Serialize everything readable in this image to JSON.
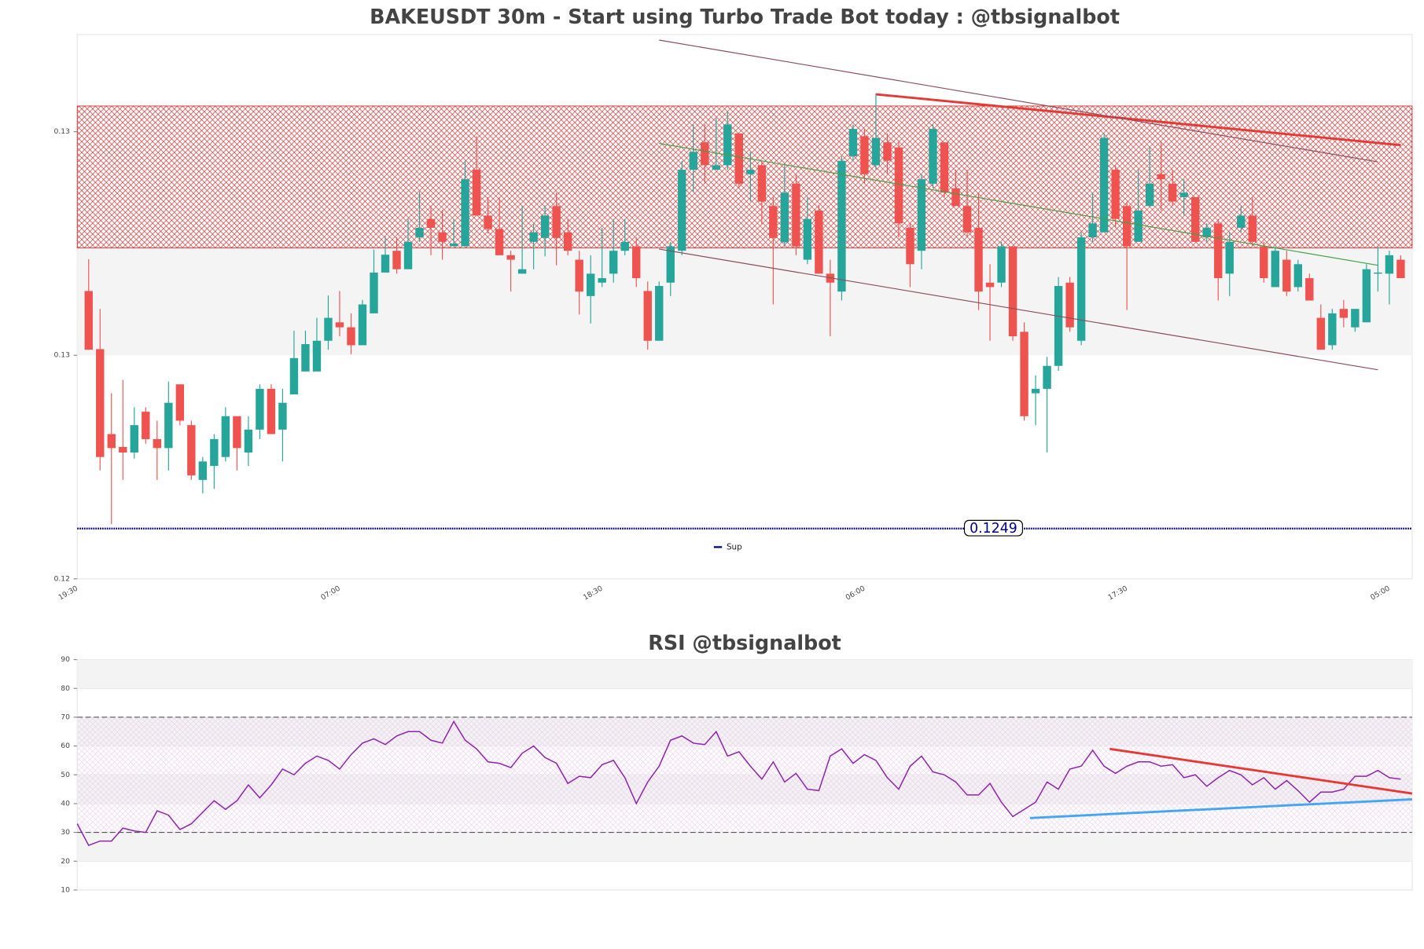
{
  "chart_data": [
    {
      "type": "candlestick",
      "title": "BAKEUSDT 30m - Start using Turbo Trade Bot today : @tbsignalbot",
      "categories": [
        "19:30",
        null,
        null,
        null,
        null,
        null,
        null,
        null,
        null,
        null,
        null,
        null,
        null,
        null,
        null,
        null,
        null,
        null,
        null,
        null,
        null,
        null,
        null,
        "07:00",
        null,
        null,
        null,
        null,
        null,
        null,
        null,
        null,
        null,
        null,
        null,
        null,
        null,
        null,
        null,
        null,
        null,
        null,
        null,
        null,
        null,
        null,
        "18:30",
        null,
        null,
        null,
        null,
        null,
        null,
        null,
        null,
        null,
        null,
        null,
        null,
        null,
        null,
        null,
        null,
        null,
        null,
        null,
        null,
        null,
        null,
        "06:00",
        null,
        null,
        null,
        null,
        null,
        null,
        null,
        null,
        null,
        null,
        null,
        null,
        null,
        null,
        null,
        null,
        null,
        null,
        null,
        null,
        null,
        null,
        "17:30",
        null,
        null,
        null,
        null,
        null,
        null,
        null,
        null,
        null,
        null,
        null,
        null,
        null,
        null,
        null,
        null,
        null,
        null,
        null,
        null,
        null,
        null,
        "05:00",
        null
      ],
      "open": [
        null,
        0.12915,
        0.12811,
        0.12659,
        0.12636,
        0.12626,
        0.12699,
        0.1265,
        0.12634,
        0.12748,
        0.12675,
        0.12577,
        0.12602,
        0.12618,
        0.12691,
        0.12626,
        0.12667,
        0.1274,
        0.12667,
        0.1273,
        0.12771,
        0.12771,
        0.12826,
        0.12859,
        0.1285,
        0.12818,
        0.12875,
        0.12948,
        0.12987,
        0.12954,
        0.13011,
        0.13044,
        0.1302,
        0.12995,
        0.12995,
        0.13132,
        0.1305,
        0.13026,
        0.12979,
        0.12946,
        0.13003,
        0.1301,
        0.13067,
        0.1302,
        0.12971,
        0.12906,
        0.1293,
        0.12946,
        0.12987,
        0.12995,
        0.12915,
        0.12826,
        0.1293,
        0.12987,
        0.13132,
        0.13181,
        0.13132,
        0.1314,
        0.13197,
        0.13124,
        0.1314,
        0.13067,
        0.13002,
        0.13107,
        0.12971,
        0.13059,
        0.12946,
        0.12914,
        0.13156,
        0.13192,
        0.1314,
        0.13181,
        0.13172,
        0.13028,
        0.12987,
        0.13107,
        0.13181,
        0.13099,
        0.13067,
        0.13028,
        0.1293,
        0.1293,
        0.12995,
        0.12842,
        0.12732,
        0.1274,
        0.12781,
        0.1293,
        0.12826,
        0.13011,
        0.1302,
        0.13132,
        0.13067,
        0.13003,
        0.13067,
        0.13124,
        0.13107,
        0.13083,
        0.13083,
        0.13011,
        0.13036,
        0.12946,
        0.13028,
        0.1305,
        0.12995,
        0.12922,
        0.12971,
        0.12922,
        0.12938,
        0.12867,
        0.12818,
        0.12883,
        0.1285,
        0.12859,
        0.12946,
        0.12946,
        0.12971
      ],
      "high": [
        null,
        0.12972,
        0.12883,
        0.12732,
        0.12756,
        0.12707,
        0.12707,
        0.12683,
        0.12753,
        0.12748,
        0.12683,
        0.12618,
        0.12659,
        0.12707,
        0.12691,
        0.12691,
        0.12748,
        0.12748,
        0.1274,
        0.12844,
        0.12844,
        0.12867,
        0.12907,
        0.12915,
        0.12875,
        0.12899,
        0.12989,
        0.13013,
        0.13011,
        0.13044,
        0.13093,
        0.13068,
        0.1306,
        0.13044,
        0.13148,
        0.13192,
        0.13083,
        0.13083,
        0.12987,
        0.13068,
        0.13036,
        0.13068,
        0.13091,
        0.13044,
        0.12987,
        0.12979,
        0.13028,
        0.13044,
        0.13044,
        0.13011,
        0.12932,
        0.12932,
        0.13003,
        0.13148,
        0.13213,
        0.13213,
        0.13224,
        0.13237,
        0.13197,
        0.13164,
        0.13148,
        0.13083,
        0.1314,
        0.13124,
        0.13083,
        0.13068,
        0.12971,
        0.13156,
        0.13213,
        0.13205,
        0.13268,
        0.13197,
        0.13181,
        0.13036,
        0.13124,
        0.13213,
        0.13181,
        0.13132,
        0.13132,
        0.13091,
        0.12963,
        0.13003,
        0.12995,
        0.12859,
        0.12764,
        0.12797,
        0.1294,
        0.1294,
        0.1302,
        0.13091,
        0.13197,
        0.1314,
        0.13075,
        0.13132,
        0.13172,
        0.13181,
        0.13132,
        0.13115,
        0.13083,
        0.13036,
        0.13044,
        0.1302,
        0.13067,
        0.13083,
        0.13003,
        0.12995,
        0.12987,
        0.12971,
        0.12946,
        0.12891,
        0.12883,
        0.12899,
        0.12883,
        0.12963,
        0.12995,
        0.12987,
        0.12979
      ],
      "low": [
        null,
        0.1281,
        0.12594,
        0.12498,
        0.12577,
        0.12615,
        0.12642,
        0.12577,
        0.12594,
        0.12675,
        0.12577,
        0.12553,
        0.12561,
        0.1261,
        0.12594,
        0.12602,
        0.1265,
        0.12659,
        0.1261,
        0.1273,
        0.12771,
        0.12771,
        0.1281,
        0.12834,
        0.12802,
        0.12818,
        0.12875,
        0.12948,
        0.12946,
        0.12954,
        0.13003,
        0.12979,
        0.12971,
        0.12995,
        0.12995,
        0.1305,
        0.13018,
        0.12979,
        0.12914,
        0.12946,
        0.12954,
        0.12977,
        0.12961,
        0.12979,
        0.12873,
        0.12857,
        0.12922,
        0.1293,
        0.12979,
        0.12922,
        0.1281,
        0.12826,
        0.12906,
        0.12979,
        0.13091,
        0.13107,
        0.13132,
        0.13132,
        0.13099,
        0.13075,
        0.13034,
        0.12891,
        0.12994,
        0.12979,
        0.12963,
        0.12946,
        0.12834,
        0.12898,
        0.13148,
        0.13107,
        0.13132,
        0.13124,
        0.13011,
        0.12922,
        0.12954,
        0.13099,
        0.13083,
        0.13067,
        0.13011,
        0.12881,
        0.12826,
        0.12922,
        0.12826,
        0.12683,
        0.12675,
        0.12626,
        0.12772,
        0.12842,
        0.12818,
        0.13003,
        0.1302,
        0.13028,
        0.12881,
        0.13003,
        0.13067,
        0.13059,
        0.13067,
        0.1305,
        0.13003,
        0.13003,
        0.12898,
        0.12906,
        0.1302,
        0.12995,
        0.1293,
        0.12922,
        0.12906,
        0.12914,
        0.12898,
        0.1281,
        0.1281,
        0.1285,
        0.12842,
        0.12859,
        0.12914,
        0.12891,
        0.12938
      ],
      "close": [
        null,
        0.1281,
        0.12618,
        0.12634,
        0.12626,
        0.12675,
        0.1265,
        0.12634,
        0.12715,
        0.12683,
        0.12585,
        0.1261,
        0.1265,
        0.12691,
        0.12634,
        0.12667,
        0.1274,
        0.12659,
        0.12715,
        0.12795,
        0.1282,
        0.12826,
        0.12867,
        0.1285,
        0.12818,
        0.12891,
        0.12948,
        0.1298,
        0.12954,
        0.13003,
        0.13028,
        0.13028,
        0.13003,
        0.13,
        0.13115,
        0.1305,
        0.13026,
        0.12979,
        0.12971,
        0.12954,
        0.1302,
        0.1305,
        0.1301,
        0.12987,
        0.12914,
        0.12946,
        0.12938,
        0.12987,
        0.13003,
        0.12938,
        0.12826,
        0.12924,
        0.12995,
        0.13132,
        0.13164,
        0.1314,
        0.1314,
        0.13213,
        0.13107,
        0.13132,
        0.13075,
        0.1301,
        0.13091,
        0.12995,
        0.13044,
        0.12946,
        0.1293,
        0.13148,
        0.13205,
        0.13124,
        0.13189,
        0.13148,
        0.13036,
        0.12963,
        0.13115,
        0.13205,
        0.13091,
        0.13067,
        0.1302,
        0.12914,
        0.12922,
        0.12995,
        0.12834,
        0.12691,
        0.1274,
        0.12781,
        0.12924,
        0.1285,
        0.13011,
        0.13036,
        0.13189,
        0.13044,
        0.12995,
        0.13059,
        0.13107,
        0.13115,
        0.13075,
        0.13091,
        0.13003,
        0.13028,
        0.12938,
        0.13003,
        0.1305,
        0.13003,
        0.12938,
        0.12987,
        0.12914,
        0.12963,
        0.12898,
        0.1281,
        0.12875,
        0.12867,
        0.12883,
        0.12954,
        0.12948,
        0.12979,
        0.12938
      ],
      "up_color": "#26a69a",
      "down_color": "#ef5350",
      "ylim": [
        0.124,
        0.13374
      ],
      "yticks": [
        {
          "value": 0.124,
          "label": "0.12"
        },
        {
          "value": 0.128,
          "label": "0.13"
        },
        {
          "value": 0.132,
          "label": "0.13"
        }
      ],
      "grid": false,
      "shade": [
        0.128,
        0.12992
      ],
      "zone": {
        "range": [
          0.12992,
          0.13246
        ],
        "color": "#d32f2f"
      },
      "support": {
        "name": "Sup",
        "value": 0.1249,
        "color": "#00008b"
      },
      "legend": "lower center",
      "trendlines": [
        {
          "x": [
            70,
            116
          ],
          "y": [
            0.13267,
            0.13176
          ],
          "color": "#e53935",
          "width": 2.5
        },
        {
          "x": [
            51,
            114
          ],
          "y": [
            0.13364,
            0.13146
          ],
          "color": "#8d4a5a",
          "width": 1
        },
        {
          "x": [
            51,
            114
          ],
          "y": [
            0.1299,
            0.12774
          ],
          "color": "#8d4a5a",
          "width": 1
        },
        {
          "x": [
            51,
            114
          ],
          "y": [
            0.13179,
            0.12961
          ],
          "color": "#43a047",
          "width": 1
        }
      ]
    },
    {
      "type": "line",
      "title": "RSI @tbsignalbot",
      "values": [
        33,
        25.5,
        27,
        27,
        31.5,
        30.5,
        30,
        37.5,
        36,
        31,
        33,
        37,
        41,
        38,
        41,
        46.5,
        42,
        46.5,
        52,
        50,
        54,
        56.5,
        55,
        52,
        57,
        61,
        62.5,
        60.5,
        63.5,
        65,
        65,
        62,
        61,
        68.5,
        62,
        59,
        54.5,
        54,
        52.5,
        57.5,
        60,
        56,
        54,
        47,
        49.5,
        49,
        53.5,
        55,
        49,
        40,
        47.5,
        53,
        62,
        63.5,
        61,
        60.5,
        65,
        56.5,
        58,
        53,
        48.5,
        54.5,
        47.5,
        50.5,
        45,
        44.5,
        56.5,
        59,
        54,
        57,
        55,
        49,
        45,
        53,
        56.5,
        51,
        50,
        47.5,
        43,
        43,
        47,
        40.5,
        35.5,
        38,
        40.5,
        47.5,
        45,
        52,
        53,
        58.5,
        53,
        50.5,
        53,
        54.5,
        54.5,
        53,
        53.5,
        49,
        50,
        46,
        49,
        51.5,
        50,
        46.5,
        49,
        45,
        48,
        44.5,
        40.5,
        44,
        44,
        45,
        49.5,
        49.5,
        51.5,
        49,
        48.5
      ],
      "color": "#8e24aa",
      "ylim": [
        10,
        90
      ],
      "yticks": [
        10,
        20,
        30,
        40,
        50,
        60,
        70,
        80,
        90
      ],
      "grid": true,
      "hlines": [
        70,
        30
      ],
      "trendlines": [
        {
          "x": [
            90.5,
            117
          ],
          "y": [
            59,
            43.5
          ],
          "color": "#e53935",
          "width": 2.5
        },
        {
          "x": [
            83.5,
            117
          ],
          "y": [
            35,
            41.5
          ],
          "color": "#42a5f5",
          "width": 2.5
        }
      ]
    }
  ]
}
